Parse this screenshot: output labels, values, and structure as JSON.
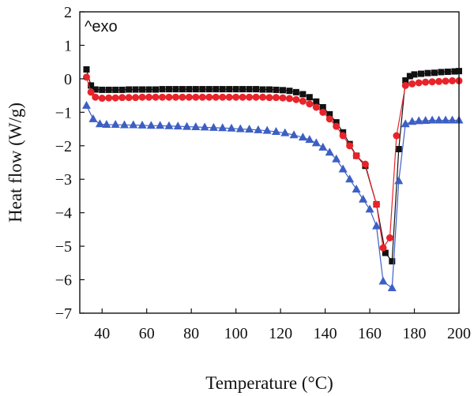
{
  "chart_data": {
    "type": "line",
    "xlabel": "Temperature (°C)",
    "ylabel": "Heat flow (W/g)",
    "annotation": "^exo",
    "xlim": [
      30,
      200
    ],
    "ylim": [
      -7,
      2
    ],
    "xticks": [
      40,
      60,
      80,
      100,
      120,
      140,
      160,
      180,
      200
    ],
    "yticks": [
      2,
      1,
      0,
      -1,
      -2,
      -3,
      -4,
      -5,
      -6,
      -7
    ],
    "grid": false,
    "series": [
      {
        "color": "#111111",
        "marker": "square",
        "points": [
          [
            33,
            0.28
          ],
          [
            35,
            -0.2
          ],
          [
            37,
            -0.32
          ],
          [
            40,
            -0.33
          ],
          [
            43,
            -0.33
          ],
          [
            46,
            -0.33
          ],
          [
            49,
            -0.33
          ],
          [
            52,
            -0.32
          ],
          [
            55,
            -0.32
          ],
          [
            58,
            -0.32
          ],
          [
            61,
            -0.32
          ],
          [
            64,
            -0.32
          ],
          [
            67,
            -0.31
          ],
          [
            70,
            -0.31
          ],
          [
            73,
            -0.31
          ],
          [
            76,
            -0.31
          ],
          [
            79,
            -0.31
          ],
          [
            82,
            -0.31
          ],
          [
            85,
            -0.31
          ],
          [
            88,
            -0.31
          ],
          [
            91,
            -0.31
          ],
          [
            94,
            -0.31
          ],
          [
            97,
            -0.31
          ],
          [
            100,
            -0.31
          ],
          [
            103,
            -0.31
          ],
          [
            106,
            -0.31
          ],
          [
            109,
            -0.31
          ],
          [
            112,
            -0.32
          ],
          [
            115,
            -0.32
          ],
          [
            118,
            -0.33
          ],
          [
            121,
            -0.34
          ],
          [
            124,
            -0.36
          ],
          [
            127,
            -0.4
          ],
          [
            130,
            -0.46
          ],
          [
            133,
            -0.55
          ],
          [
            136,
            -0.68
          ],
          [
            139,
            -0.85
          ],
          [
            142,
            -1.06
          ],
          [
            145,
            -1.3
          ],
          [
            148,
            -1.6
          ],
          [
            151,
            -1.95
          ],
          [
            154,
            -2.3
          ],
          [
            158,
            -2.6
          ],
          [
            163,
            -3.75
          ],
          [
            167,
            -5.2
          ],
          [
            170,
            -5.45
          ],
          [
            173,
            -2.1
          ],
          [
            176,
            -0.05
          ],
          [
            178,
            0.08
          ],
          [
            180,
            0.13
          ],
          [
            183,
            0.15
          ],
          [
            186,
            0.17
          ],
          [
            189,
            0.18
          ],
          [
            192,
            0.2
          ],
          [
            195,
            0.21
          ],
          [
            198,
            0.22
          ],
          [
            200,
            0.23
          ]
        ]
      },
      {
        "color": "#e8232a",
        "marker": "circle",
        "points": [
          [
            33,
            0.05
          ],
          [
            35,
            -0.4
          ],
          [
            37,
            -0.55
          ],
          [
            40,
            -0.58
          ],
          [
            43,
            -0.57
          ],
          [
            46,
            -0.57
          ],
          [
            49,
            -0.56
          ],
          [
            52,
            -0.56
          ],
          [
            55,
            -0.56
          ],
          [
            58,
            -0.55
          ],
          [
            61,
            -0.55
          ],
          [
            64,
            -0.55
          ],
          [
            67,
            -0.55
          ],
          [
            70,
            -0.55
          ],
          [
            73,
            -0.55
          ],
          [
            76,
            -0.55
          ],
          [
            79,
            -0.55
          ],
          [
            82,
            -0.55
          ],
          [
            85,
            -0.55
          ],
          [
            88,
            -0.55
          ],
          [
            91,
            -0.55
          ],
          [
            94,
            -0.55
          ],
          [
            97,
            -0.55
          ],
          [
            100,
            -0.55
          ],
          [
            103,
            -0.55
          ],
          [
            106,
            -0.55
          ],
          [
            109,
            -0.55
          ],
          [
            112,
            -0.55
          ],
          [
            115,
            -0.56
          ],
          [
            118,
            -0.56
          ],
          [
            121,
            -0.57
          ],
          [
            124,
            -0.59
          ],
          [
            127,
            -0.62
          ],
          [
            130,
            -0.67
          ],
          [
            133,
            -0.75
          ],
          [
            136,
            -0.85
          ],
          [
            139,
            -1.0
          ],
          [
            142,
            -1.2
          ],
          [
            145,
            -1.42
          ],
          [
            148,
            -1.7
          ],
          [
            151,
            -2.0
          ],
          [
            154,
            -2.3
          ],
          [
            158,
            -2.55
          ],
          [
            163,
            -3.75
          ],
          [
            166,
            -5.05
          ],
          [
            169,
            -4.75
          ],
          [
            172,
            -1.7
          ],
          [
            176,
            -0.2
          ],
          [
            179,
            -0.15
          ],
          [
            182,
            -0.12
          ],
          [
            185,
            -0.1
          ],
          [
            188,
            -0.09
          ],
          [
            191,
            -0.08
          ],
          [
            194,
            -0.07
          ],
          [
            197,
            -0.06
          ],
          [
            200,
            -0.06
          ]
        ]
      },
      {
        "color": "#3d5fc4",
        "marker": "triangle",
        "points": [
          [
            33,
            -0.8
          ],
          [
            36,
            -1.2
          ],
          [
            39,
            -1.35
          ],
          [
            42,
            -1.37
          ],
          [
            46,
            -1.37
          ],
          [
            50,
            -1.38
          ],
          [
            54,
            -1.38
          ],
          [
            58,
            -1.39
          ],
          [
            62,
            -1.4
          ],
          [
            66,
            -1.4
          ],
          [
            70,
            -1.41
          ],
          [
            74,
            -1.42
          ],
          [
            78,
            -1.43
          ],
          [
            82,
            -1.44
          ],
          [
            86,
            -1.45
          ],
          [
            90,
            -1.46
          ],
          [
            94,
            -1.47
          ],
          [
            98,
            -1.48
          ],
          [
            102,
            -1.5
          ],
          [
            106,
            -1.51
          ],
          [
            110,
            -1.53
          ],
          [
            114,
            -1.55
          ],
          [
            118,
            -1.58
          ],
          [
            122,
            -1.62
          ],
          [
            126,
            -1.68
          ],
          [
            130,
            -1.75
          ],
          [
            133,
            -1.82
          ],
          [
            136,
            -1.92
          ],
          [
            139,
            -2.05
          ],
          [
            142,
            -2.2
          ],
          [
            145,
            -2.4
          ],
          [
            148,
            -2.7
          ],
          [
            151,
            -3.0
          ],
          [
            154,
            -3.3
          ],
          [
            157,
            -3.6
          ],
          [
            160,
            -3.9
          ],
          [
            163,
            -4.4
          ],
          [
            166,
            -6.05
          ],
          [
            170,
            -6.25
          ],
          [
            173,
            -3.05
          ],
          [
            176,
            -1.35
          ],
          [
            179,
            -1.28
          ],
          [
            182,
            -1.26
          ],
          [
            185,
            -1.25
          ],
          [
            188,
            -1.24
          ],
          [
            191,
            -1.24
          ],
          [
            194,
            -1.24
          ],
          [
            197,
            -1.24
          ],
          [
            200,
            -1.24
          ]
        ]
      }
    ]
  }
}
